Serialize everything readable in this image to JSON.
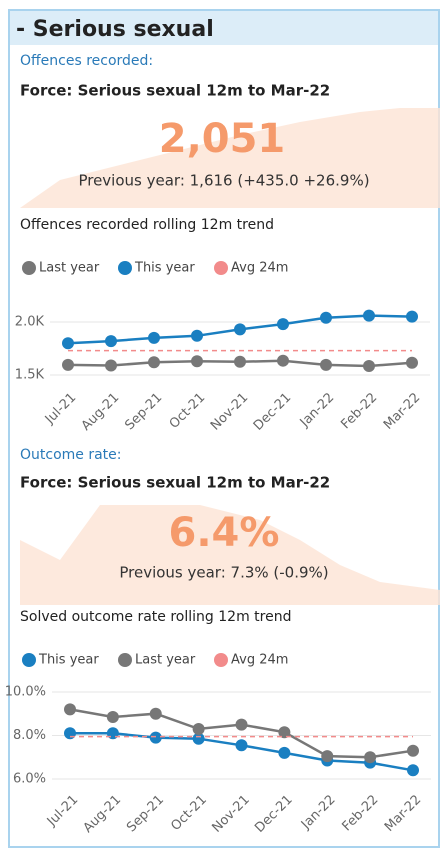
{
  "header": {
    "title": "- Serious sexual"
  },
  "sections": [
    {
      "label": "Offences recorded:",
      "kpi_title": "Force: Serious sexual 12m to Mar-22",
      "kpi_value": "2,051",
      "kpi_compare": "Previous year: 1,616 (+435.0 +26.9%)"
    },
    {
      "label": "Outcome rate:",
      "kpi_title": "Force: Serious sexual 12m to Mar-22",
      "kpi_value": "6.4%",
      "kpi_compare": "Previous year: 7.3% (-0.9%)"
    }
  ],
  "chart_data": [
    {
      "type": "line",
      "title": "Offences recorded rolling 12m trend",
      "categories": [
        "Jul-21",
        "Aug-21",
        "Sep-21",
        "Oct-21",
        "Nov-21",
        "Dec-21",
        "Jan-22",
        "Feb-22",
        "Mar-22"
      ],
      "series": [
        {
          "name": "Last year",
          "color": "#777777",
          "style": "solid",
          "values": [
            1595,
            1590,
            1620,
            1630,
            1625,
            1635,
            1595,
            1585,
            1616
          ]
        },
        {
          "name": "This year",
          "color": "#1a7fc1",
          "style": "solid",
          "values": [
            1800,
            1820,
            1850,
            1870,
            1930,
            1980,
            2040,
            2060,
            2051
          ]
        },
        {
          "name": "Avg 24m",
          "color": "#f28b8b",
          "style": "dashed",
          "values": [
            1730,
            1730,
            1730,
            1730,
            1730,
            1730,
            1730,
            1730,
            1730
          ]
        }
      ],
      "ylim": [
        1400,
        2200
      ],
      "yticks": [
        {
          "value": 1500,
          "label": "1.5K"
        },
        {
          "value": 2000,
          "label": "2.0K"
        }
      ],
      "grid": true
    },
    {
      "type": "line",
      "title": "Solved outcome rate rolling 12m trend",
      "categories": [
        "Jul-21",
        "Aug-21",
        "Sep-21",
        "Oct-21",
        "Nov-21",
        "Dec-21",
        "Jan-22",
        "Feb-22",
        "Mar-22"
      ],
      "series": [
        {
          "name": "This year",
          "color": "#1a7fc1",
          "style": "solid",
          "values": [
            8.1,
            8.1,
            7.9,
            7.85,
            7.55,
            7.2,
            6.85,
            6.75,
            6.4
          ]
        },
        {
          "name": "Last year",
          "color": "#777777",
          "style": "solid",
          "values": [
            9.2,
            8.85,
            9.0,
            8.3,
            8.5,
            8.15,
            7.05,
            7.0,
            7.3
          ]
        },
        {
          "name": "Avg 24m",
          "color": "#f28b8b",
          "style": "dashed",
          "values": [
            7.95,
            7.95,
            7.95,
            7.95,
            7.95,
            7.95,
            7.95,
            7.95,
            7.95
          ]
        }
      ],
      "ylim": [
        5.6,
        10.2
      ],
      "yticks": [
        {
          "value": 6,
          "label": "6.0%"
        },
        {
          "value": 8,
          "label": "8.0%"
        },
        {
          "value": 10,
          "label": "10.0%"
        }
      ],
      "grid": true
    }
  ]
}
